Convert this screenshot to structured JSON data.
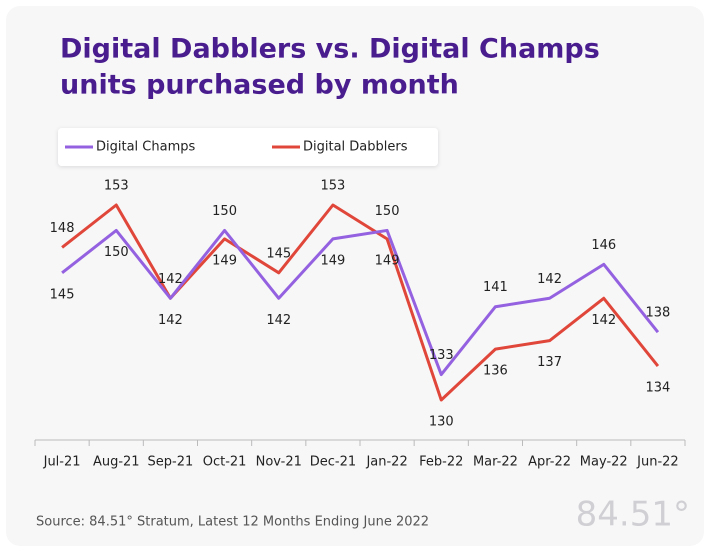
{
  "chart_data": {
    "type": "line",
    "title": [
      "Digital Dabblers vs. Digital Champs",
      "units purchased by month"
    ],
    "categories": [
      "Jul-21",
      "Aug-21",
      "Sep-21",
      "Oct-21",
      "Nov-21",
      "Dec-21",
      "Jan-22",
      "Feb-22",
      "Mar-22",
      "Apr-22",
      "May-22",
      "Jun-22"
    ],
    "series": [
      {
        "name": "Digital Champs",
        "color": "#9461e0",
        "values": [
          145,
          150,
          142,
          150,
          142,
          149,
          150,
          133,
          141,
          142,
          146,
          138
        ]
      },
      {
        "name": "Digital Dabblers",
        "color": "#e0473a",
        "values": [
          148,
          153,
          142,
          149,
          145,
          153,
          149,
          130,
          136,
          137,
          142,
          134
        ]
      }
    ],
    "legend": "top-left",
    "source": "Source: 84.51° Stratum, Latest 12 Months Ending June 2022",
    "logo": "84.51°"
  }
}
